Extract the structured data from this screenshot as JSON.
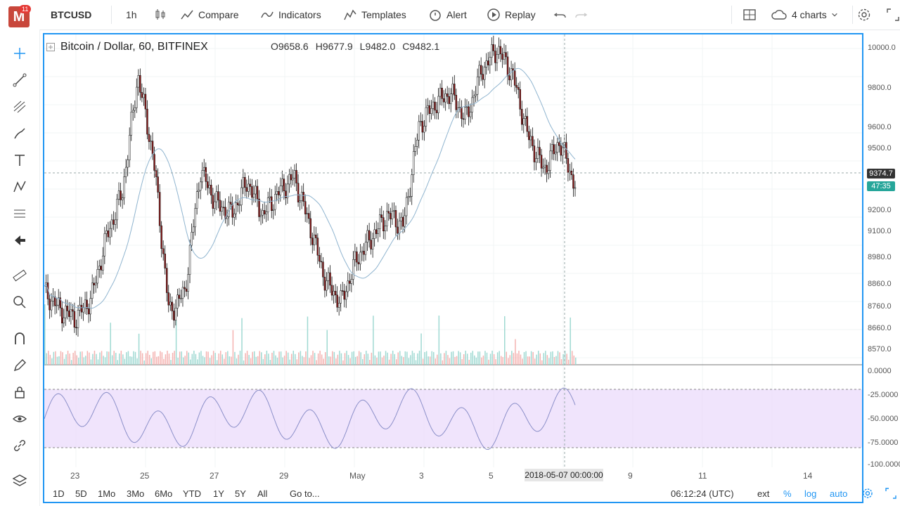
{
  "app": {
    "badge_count": "11",
    "symbol": "BTCUSD",
    "interval": "1h",
    "compare": "Compare",
    "indicators": "Indicators",
    "templates": "Templates",
    "alert": "Alert",
    "replay": "Replay",
    "charts_count": "4 charts"
  },
  "legend": {
    "title": "Bitcoin / Dollar, 60, BITFINEX",
    "open": "O9658.6",
    "high": "H9677.9",
    "low": "L9482.0",
    "close": "C9482.1"
  },
  "price_axis": [
    "10000.0",
    "9800.0",
    "9600.0",
    "9500.0",
    "9200.0",
    "9100.0",
    "8980.0",
    "8860.0",
    "8760.0",
    "8660.0",
    "8570.0"
  ],
  "osc_axis": [
    "0.0000",
    "-25.0000",
    "-50.0000",
    "-75.0000",
    "-100.0000"
  ],
  "price_tags": {
    "last": "9374.7",
    "countdown": "47:35"
  },
  "time_axis": [
    "23",
    "25",
    "27",
    "29",
    "May",
    "3",
    "5",
    "9",
    "11",
    "14"
  ],
  "crosshair_time": "2018-05-07 00:00:00",
  "bottom": {
    "ranges": [
      "1D",
      "5D",
      "1Mo",
      "3Mo",
      "6Mo",
      "YTD",
      "1Y",
      "5Y",
      "All"
    ],
    "goto": "Go to...",
    "clock": "06:12:24 (UTC)",
    "ext": "ext",
    "percent": "%",
    "log": "log",
    "auto": "auto"
  },
  "colors": {
    "accent": "#2196f3",
    "up": "#26a69a",
    "down": "#ef5350",
    "osc_band": "#e9d8fb"
  },
  "chart_data": {
    "type": "line",
    "series": [
      {
        "values": [
          8900,
          8820,
          8780,
          8870,
          9150,
          9350,
          9880,
          9500,
          8800,
          8900,
          9450,
          9300,
          9250,
          9400,
          9250,
          9350,
          9420,
          9200,
          8950,
          8850,
          9050,
          9150,
          9250,
          9200,
          9650,
          9750,
          9800,
          9680,
          9900,
          10000,
          9880,
          9600,
          9450,
          9580,
          9380
        ]
      }
    ],
    "ylim": [
      8570,
      10000
    ]
  }
}
